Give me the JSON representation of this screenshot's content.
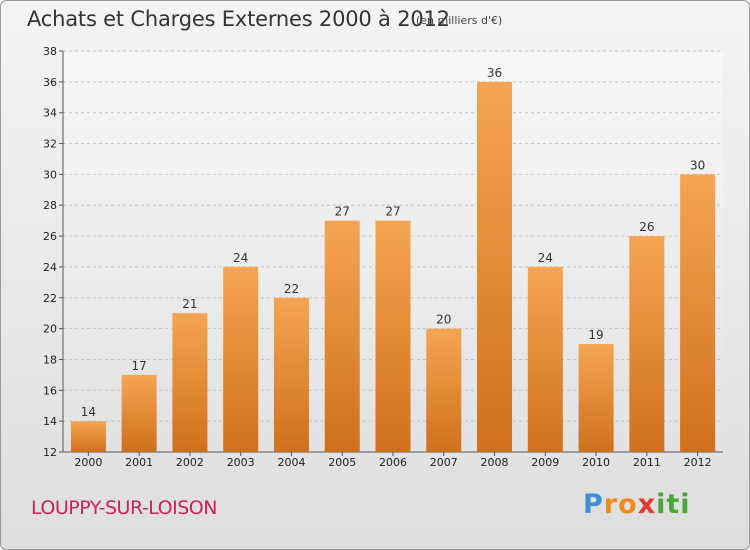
{
  "header": {
    "title": "Achats et Charges Externes 2000 à 2012",
    "unit": "(en milliers d'€)"
  },
  "footer": {
    "commune": "LOUPPY-SUR-LOISON",
    "logo_letters": [
      {
        "ch": "P",
        "color": "#3b8fd6"
      },
      {
        "ch": "r",
        "color": "#f08a1c"
      },
      {
        "ch": "o",
        "color": "#f08a1c"
      },
      {
        "ch": "x",
        "color": "#e23a2e"
      },
      {
        "ch": "i",
        "color": "#4aa83a"
      },
      {
        "ch": "t",
        "color": "#4aa83a"
      },
      {
        "ch": "i",
        "color": "#4aa83a"
      }
    ]
  },
  "chart_data": {
    "type": "bar",
    "title": "Achats et Charges Externes 2000 à 2012",
    "subtitle": "(en milliers d'€)",
    "xlabel": "",
    "ylabel": "",
    "categories": [
      "2000",
      "2001",
      "2002",
      "2003",
      "2004",
      "2005",
      "2006",
      "2007",
      "2008",
      "2009",
      "2010",
      "2011",
      "2012"
    ],
    "values": [
      14,
      17,
      21,
      24,
      22,
      27,
      27,
      20,
      36,
      24,
      19,
      26,
      30
    ],
    "ylim": [
      12,
      38
    ],
    "yticks": [
      12,
      14,
      16,
      18,
      20,
      22,
      24,
      26,
      28,
      30,
      32,
      34,
      36,
      38
    ],
    "grid": "horizontal dashed",
    "bar_color_top": "#f5a552",
    "bar_color_bottom": "#d0701c"
  }
}
